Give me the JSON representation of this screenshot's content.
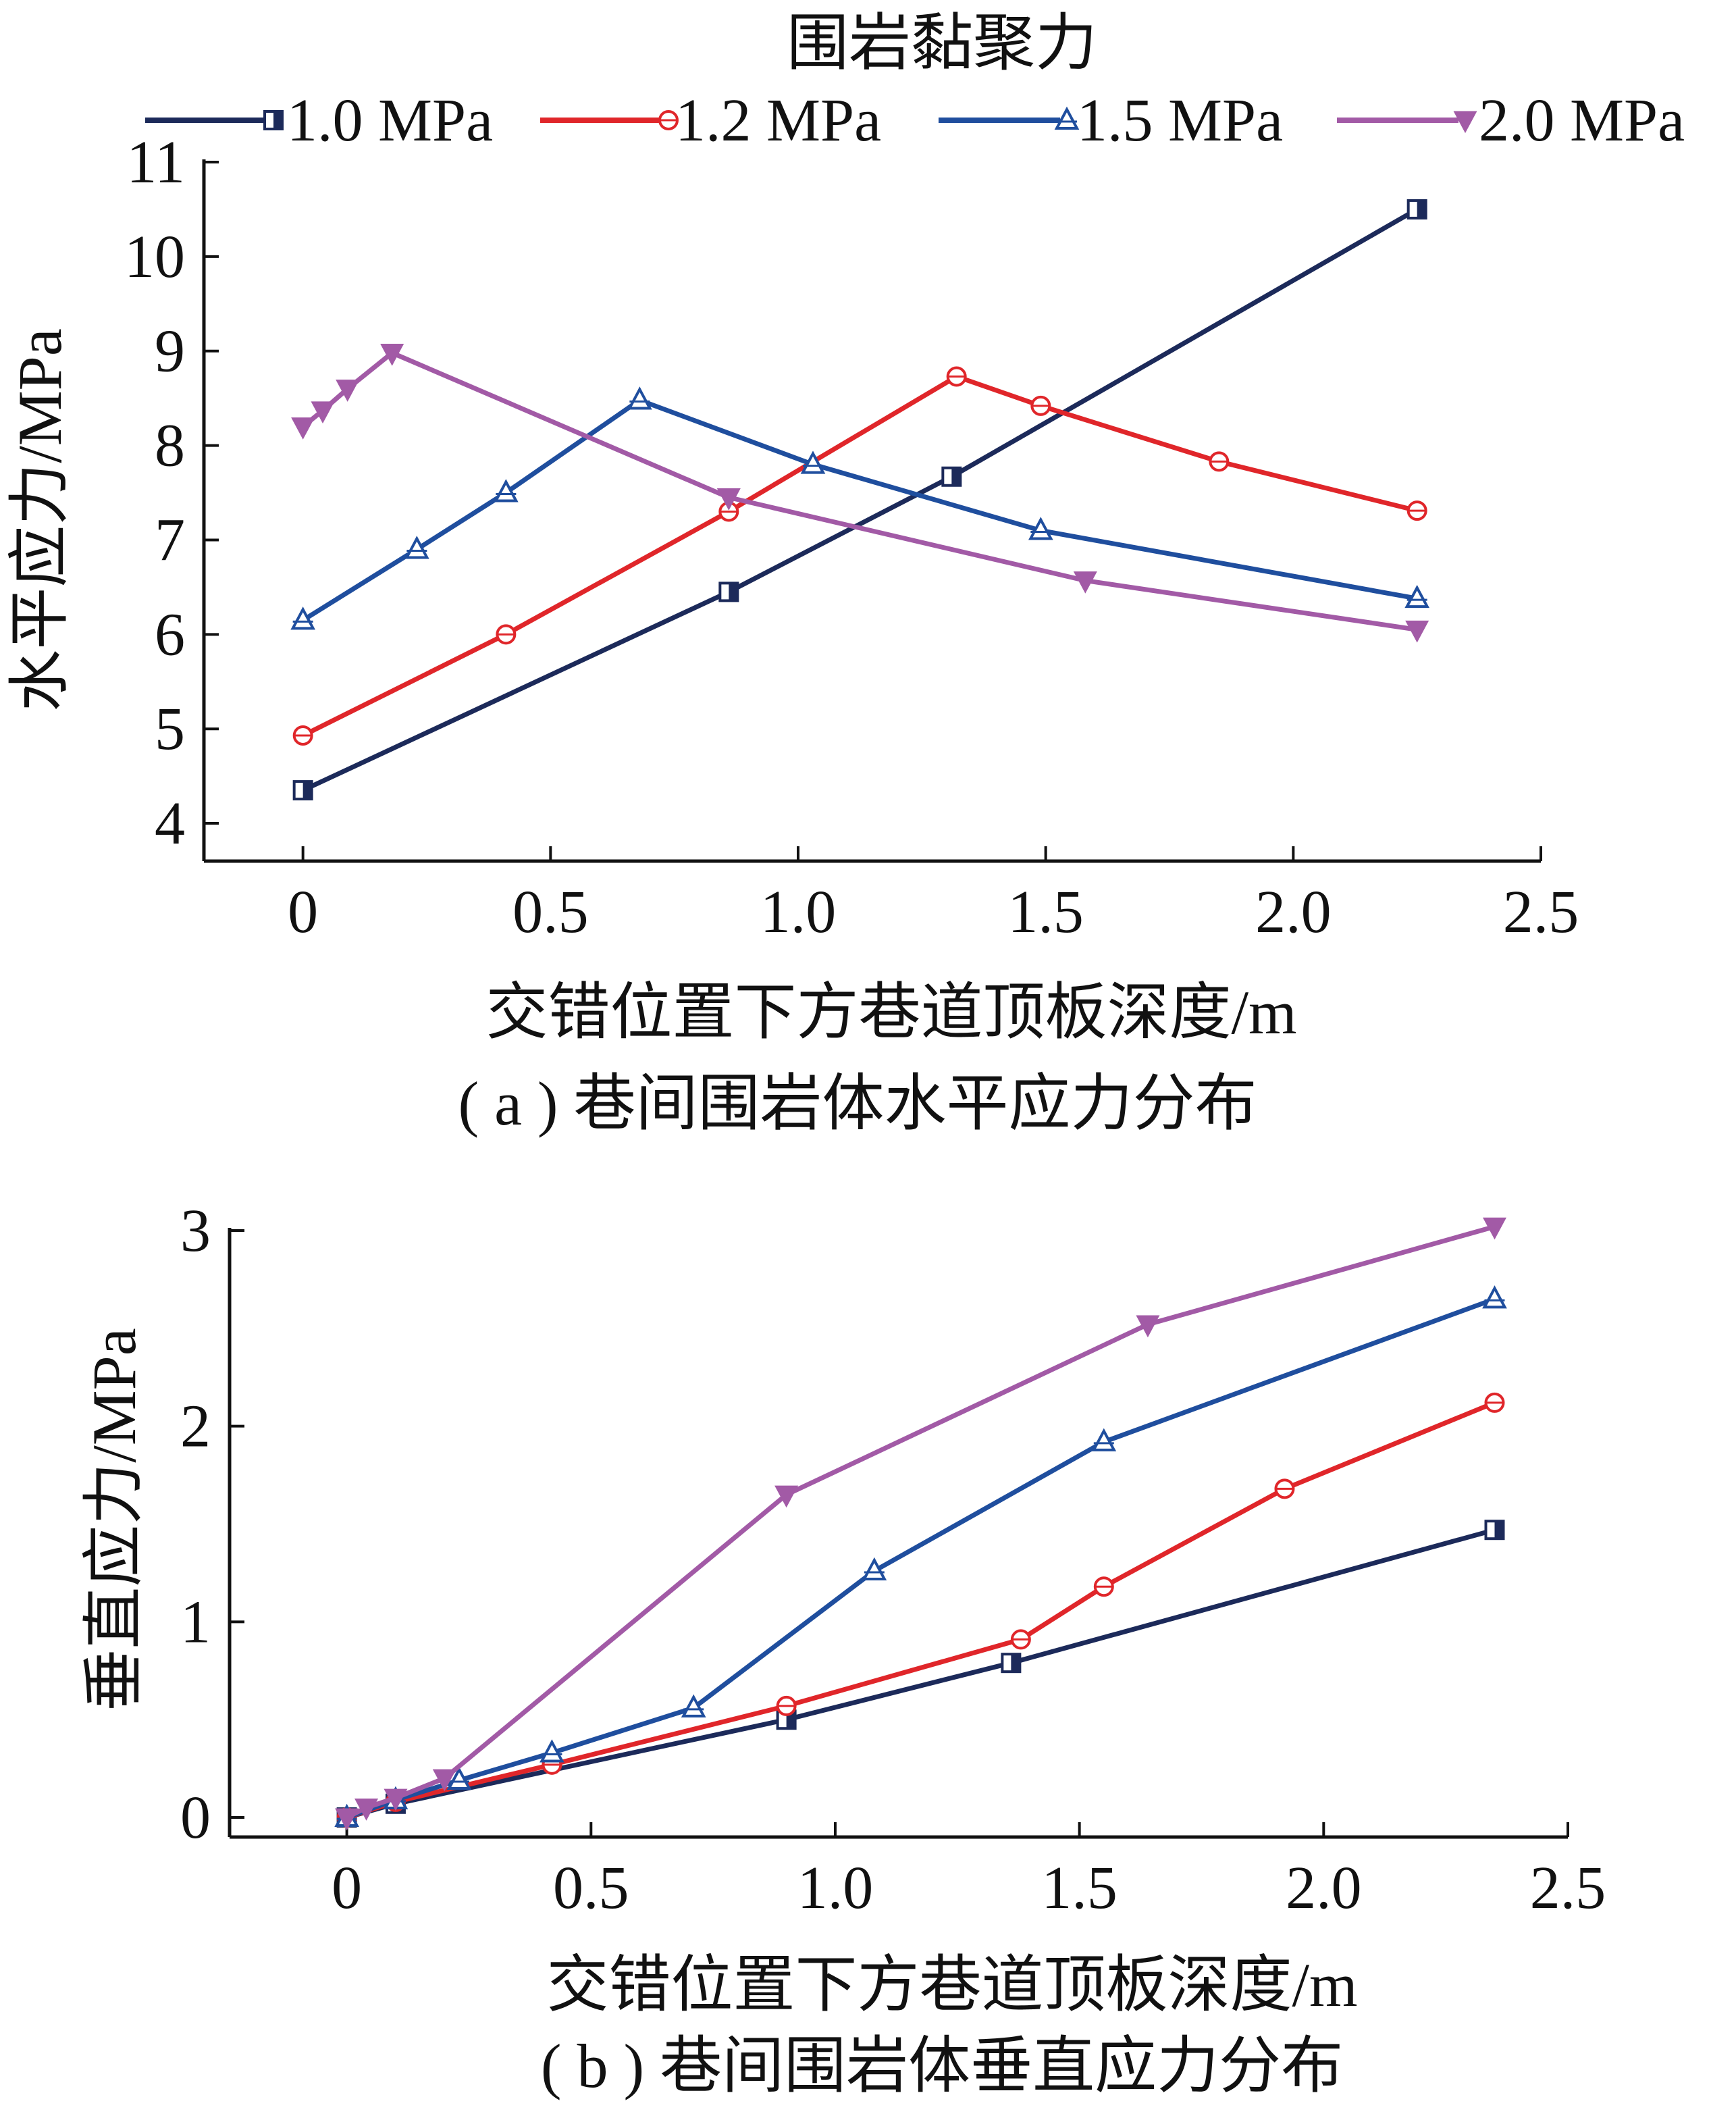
{
  "legend": {
    "title": "围岩黏聚力",
    "entries": [
      {
        "label": "1.0 MPa",
        "color": "#1c2a5a",
        "marker": "square-half"
      },
      {
        "label": "1.2 MPa",
        "color": "#e0262a",
        "marker": "circle-plus"
      },
      {
        "label": "1.5 MPa",
        "color": "#1f4e9e",
        "marker": "triangle-up"
      },
      {
        "label": "2.0 MPa",
        "color": "#a25aa6",
        "marker": "triangle-down"
      }
    ]
  },
  "chart_data": [
    {
      "type": "line",
      "panel": "a",
      "caption": "( a ) 巷间围岩体水平应力分布",
      "xlabel": "交错位置下方巷道顶板深度/m",
      "ylabel": "水平应力/MPa",
      "xlim": [
        -0.2,
        2.5
      ],
      "ylim": [
        3.6,
        11.0
      ],
      "xticks": [
        0,
        0.5,
        1.0,
        1.5,
        2.0,
        2.5
      ],
      "xtick_labels": [
        "0",
        "0.5",
        "1.0",
        "1.5",
        "2.0",
        "2.5"
      ],
      "yticks": [
        4,
        5,
        6,
        7,
        8,
        9,
        10,
        11
      ],
      "ytick_labels": [
        "4",
        "5",
        "6",
        "7",
        "8",
        "9",
        "10",
        "11"
      ],
      "grid": false,
      "series": [
        {
          "name": "1.0 MPa",
          "x": [
            0,
            0.86,
            1.31,
            2.25
          ],
          "y": [
            4.35,
            6.45,
            7.67,
            10.5
          ]
        },
        {
          "name": "1.2 MPa",
          "x": [
            0,
            0.41,
            0.86,
            1.32,
            1.49,
            1.85,
            2.25
          ],
          "y": [
            4.93,
            6.0,
            7.3,
            8.73,
            8.42,
            7.83,
            7.31
          ]
        },
        {
          "name": "1.5 MPa",
          "x": [
            0,
            0.23,
            0.41,
            0.68,
            1.03,
            1.49,
            2.25
          ],
          "y": [
            6.15,
            6.9,
            7.5,
            8.48,
            7.8,
            7.1,
            6.38
          ]
        },
        {
          "name": "2.0 MPa",
          "x": [
            0,
            0.04,
            0.09,
            0.18,
            0.86,
            1.58,
            2.25
          ],
          "y": [
            8.2,
            8.37,
            8.6,
            8.98,
            7.45,
            6.57,
            6.05
          ]
        }
      ]
    },
    {
      "type": "line",
      "panel": "b",
      "caption": "( b ) 巷间围岩体垂直应力分布",
      "xlabel": "交错位置下方巷道顶板深度/m",
      "ylabel": "垂直应力/MPa",
      "xlim": [
        -0.24,
        2.5
      ],
      "ylim": [
        -0.1,
        3.0
      ],
      "xticks": [
        0,
        0.5,
        1.0,
        1.5,
        2.0,
        2.5
      ],
      "xtick_labels": [
        "0",
        "0.5",
        "1.0",
        "1.5",
        "2.0",
        "2.5"
      ],
      "yticks": [
        0,
        1,
        2,
        3
      ],
      "ytick_labels": [
        "0",
        "1",
        "2",
        "3"
      ],
      "grid": false,
      "series": [
        {
          "name": "1.0 MPa",
          "x": [
            0,
            0.1,
            0.9,
            1.36,
            2.35
          ],
          "y": [
            0.0,
            0.07,
            0.5,
            0.79,
            1.47
          ]
        },
        {
          "name": "1.2 MPa",
          "x": [
            0,
            0.1,
            0.42,
            0.9,
            1.38,
            1.55,
            1.92,
            2.35
          ],
          "y": [
            0.0,
            0.08,
            0.27,
            0.57,
            0.91,
            1.18,
            1.68,
            2.12
          ]
        },
        {
          "name": "1.5 MPa",
          "x": [
            0,
            0.1,
            0.23,
            0.42,
            0.71,
            1.08,
            1.55,
            2.35
          ],
          "y": [
            0.0,
            0.09,
            0.19,
            0.33,
            0.56,
            1.26,
            1.92,
            2.65
          ]
        },
        {
          "name": "2.0 MPa",
          "x": [
            0,
            0.04,
            0.1,
            0.2,
            0.9,
            1.64,
            2.35
          ],
          "y": [
            0.0,
            0.05,
            0.1,
            0.2,
            1.65,
            2.52,
            3.02
          ]
        }
      ]
    }
  ]
}
